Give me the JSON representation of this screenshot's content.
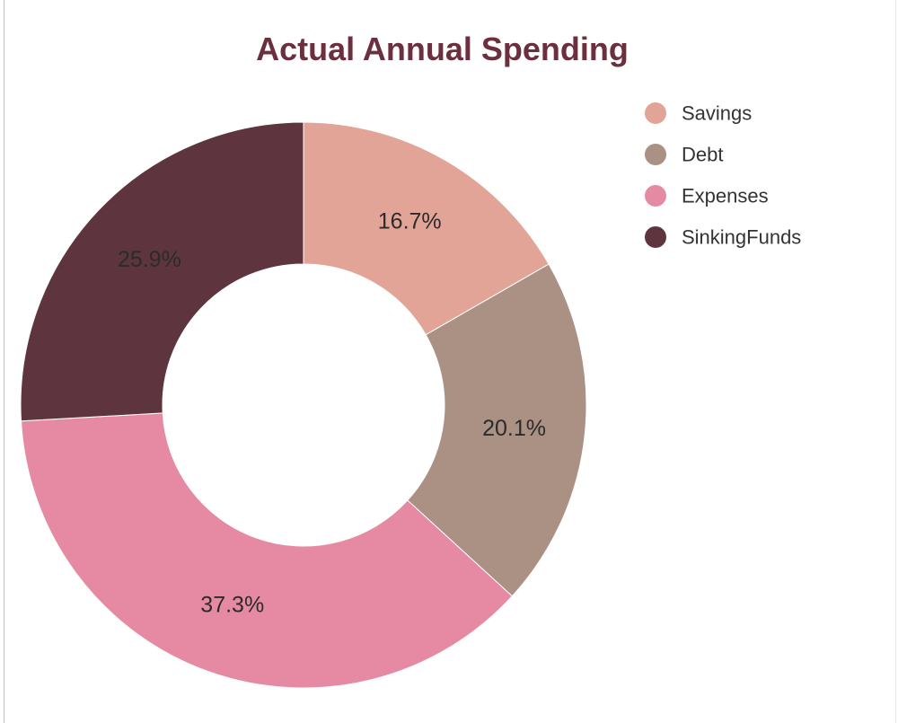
{
  "chart_data": {
    "type": "pie",
    "variant": "donut",
    "title": "Actual Annual Spending",
    "title_color": "#6b2f3e",
    "legend_position": "top-right",
    "slices": [
      {
        "label": "Savings",
        "value": 16.7,
        "value_label": "16.7%",
        "color": "#e1a497"
      },
      {
        "label": "Debt",
        "value": 20.1,
        "value_label": "20.1%",
        "color": "#ab9184"
      },
      {
        "label": "Expenses",
        "value": 37.3,
        "value_label": "37.3%",
        "color": "#e68aa4"
      },
      {
        "label": "SinkingFunds",
        "value": 25.9,
        "value_label": "25.9%",
        "color": "#5e353f"
      }
    ]
  }
}
